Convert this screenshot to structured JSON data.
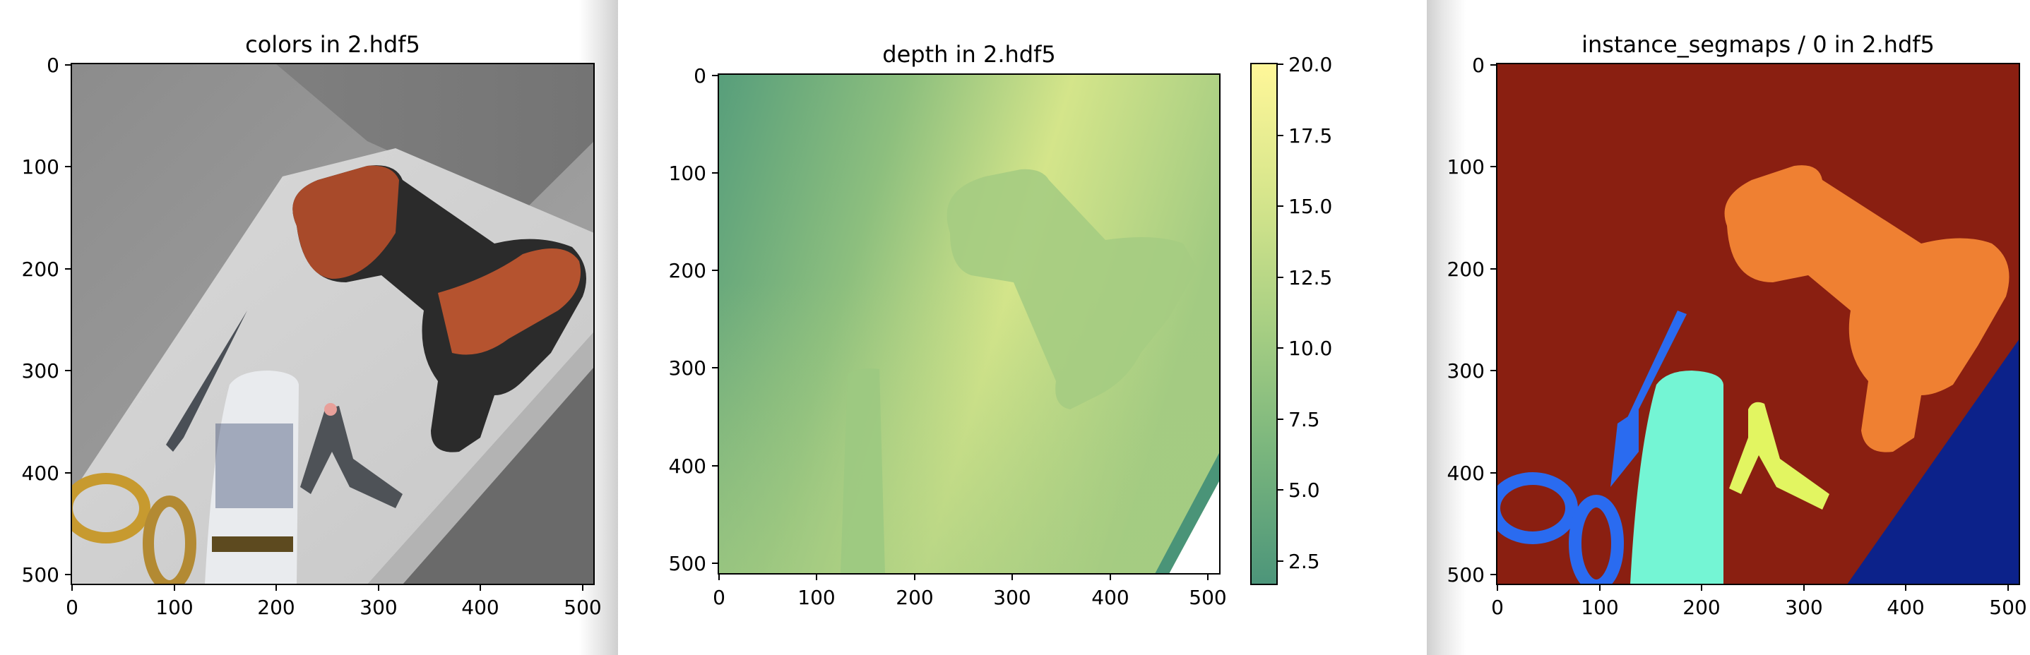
{
  "panels": [
    {
      "title": "colors in 2.hdf5",
      "xticks": [
        "0",
        "100",
        "200",
        "300",
        "400",
        "500"
      ],
      "yticks": [
        "0",
        "100",
        "200",
        "300",
        "400",
        "500"
      ]
    },
    {
      "title": "depth in 2.hdf5",
      "xticks": [
        "0",
        "100",
        "200",
        "300",
        "400",
        "500"
      ],
      "yticks": [
        "0",
        "100",
        "200",
        "300",
        "400",
        "500"
      ],
      "colorbar": {
        "ticks": [
          "20.0",
          "17.5",
          "15.0",
          "12.5",
          "10.0",
          "7.5",
          "5.0",
          "2.5"
        ],
        "colors": {
          "top": "#fff799",
          "mid_high": "#d7e68c",
          "mid": "#a8cf83",
          "mid_low": "#79b57d",
          "bottom": "#4c957a"
        }
      }
    },
    {
      "title": "instance_segmaps / 0 in 2.hdf5",
      "xticks": [
        "0",
        "100",
        "200",
        "300",
        "400",
        "500"
      ],
      "yticks": [
        "0",
        "100",
        "200",
        "300",
        "400",
        "500"
      ],
      "colors": {
        "background": "#8a1f11",
        "drill": "#ef8032",
        "scissors": "#2a6bf0",
        "bottle": "#74f5d4",
        "clamp": "#e2f561",
        "floor": "#0c228a"
      }
    }
  ],
  "chart_data": [
    {
      "type": "heatmap",
      "title": "colors in 2.hdf5",
      "x_range": [
        0,
        512
      ],
      "y_range": [
        0,
        512
      ],
      "y_inverted": true
    },
    {
      "type": "heatmap",
      "title": "depth in 2.hdf5",
      "x_range": [
        0,
        512
      ],
      "y_range": [
        0,
        512
      ],
      "y_inverted": true,
      "colorbar_range": [
        1.6,
        20.0
      ]
    },
    {
      "type": "heatmap",
      "title": "instance_segmaps / 0 in 2.hdf5",
      "x_range": [
        0,
        512
      ],
      "y_range": [
        0,
        512
      ],
      "y_inverted": true
    }
  ]
}
